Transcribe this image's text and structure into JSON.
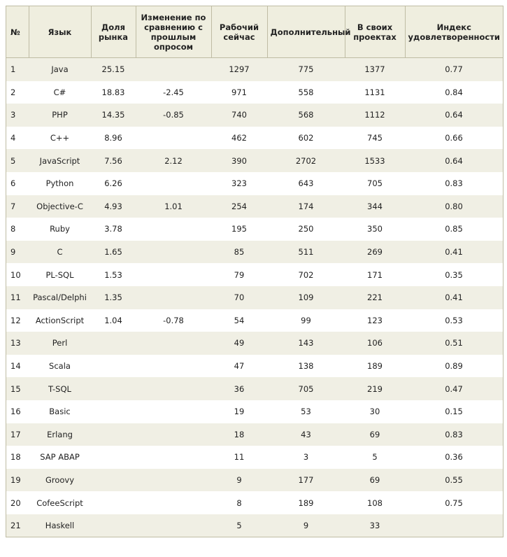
{
  "columns": [
    "№",
    "Язык",
    "Доля рынка",
    "Изменение по сравнению с прошлым опросом",
    "Рабочий сейчас",
    "Дополнительный",
    "В своих проектах",
    "Индекс удовлетворенности"
  ],
  "rows": [
    [
      "1",
      "Java",
      "25.15",
      "",
      "1297",
      "775",
      "1377",
      "0.77"
    ],
    [
      "2",
      "C#",
      "18.83",
      "-2.45",
      "971",
      "558",
      "1131",
      "0.84"
    ],
    [
      "3",
      "PHP",
      "14.35",
      "-0.85",
      "740",
      "568",
      "1112",
      "0.64"
    ],
    [
      "4",
      "C++",
      "8.96",
      "",
      "462",
      "602",
      "745",
      "0.66"
    ],
    [
      "5",
      "JavaScript",
      "7.56",
      "2.12",
      "390",
      "2702",
      "1533",
      "0.64"
    ],
    [
      "6",
      "Python",
      "6.26",
      "",
      "323",
      "643",
      "705",
      "0.83"
    ],
    [
      "7",
      "Objective-C",
      "4.93",
      "1.01",
      "254",
      "174",
      "344",
      "0.80"
    ],
    [
      "8",
      "Ruby",
      "3.78",
      "",
      "195",
      "250",
      "350",
      "0.85"
    ],
    [
      "9",
      "C",
      "1.65",
      "",
      "85",
      "511",
      "269",
      "0.41"
    ],
    [
      "10",
      "PL-SQL",
      "1.53",
      "",
      "79",
      "702",
      "171",
      "0.35"
    ],
    [
      "11",
      "Pascal/Delphi",
      "1.35",
      "",
      "70",
      "109",
      "221",
      "0.41"
    ],
    [
      "12",
      "ActionScript",
      "1.04",
      "-0.78",
      "54",
      "99",
      "123",
      "0.53"
    ],
    [
      "13",
      "Perl",
      "",
      "",
      "49",
      "143",
      "106",
      "0.51"
    ],
    [
      "14",
      "Scala",
      "",
      "",
      "47",
      "138",
      "189",
      "0.89"
    ],
    [
      "15",
      "T-SQL",
      "",
      "",
      "36",
      "705",
      "219",
      "0.47"
    ],
    [
      "16",
      "Basic",
      "",
      "",
      "19",
      "53",
      "30",
      "0.15"
    ],
    [
      "17",
      "Erlang",
      "",
      "",
      "18",
      "43",
      "69",
      "0.83"
    ],
    [
      "18",
      "SAP ABAP",
      "",
      "",
      "11",
      "3",
      "5",
      "0.36"
    ],
    [
      "19",
      "Groovy",
      "",
      "",
      "9",
      "177",
      "69",
      "0.55"
    ],
    [
      "20",
      "CofeeScript",
      "",
      "",
      "8",
      "189",
      "108",
      "0.75"
    ],
    [
      "21",
      "Haskell",
      "",
      "",
      "5",
      "9",
      "33",
      ""
    ]
  ]
}
